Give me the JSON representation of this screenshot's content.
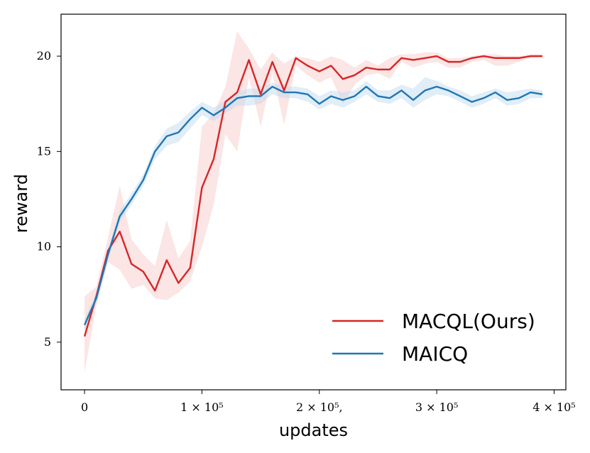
{
  "chart_data": {
    "type": "line",
    "title": "",
    "xlabel": "updates",
    "ylabel": "reward",
    "xlim": [
      -20000,
      410000
    ],
    "ylim": [
      2.5,
      22.2
    ],
    "x_ticks": [
      {
        "value": 0,
        "label": "0"
      },
      {
        "value": 100000,
        "label": "1 × 10⁵"
      },
      {
        "value": 200000,
        "label": "2 × 10⁵,"
      },
      {
        "value": 300000,
        "label": "3 × 10⁵"
      },
      {
        "value": 400000,
        "label": "4 × 10⁵"
      }
    ],
    "y_ticks": [
      {
        "value": 5,
        "label": "5"
      },
      {
        "value": 10,
        "label": "10"
      },
      {
        "value": 15,
        "label": "15"
      },
      {
        "value": 20,
        "label": "20"
      }
    ],
    "grid": false,
    "legend_position": "bottom-right",
    "x": [
      0,
      10000,
      20000,
      30000,
      40000,
      50000,
      60000,
      70000,
      80000,
      90000,
      100000,
      110000,
      120000,
      130000,
      140000,
      150000,
      160000,
      170000,
      180000,
      190000,
      200000,
      210000,
      220000,
      230000,
      240000,
      250000,
      260000,
      270000,
      280000,
      290000,
      300000,
      310000,
      320000,
      330000,
      340000,
      350000,
      360000,
      370000,
      380000,
      390000
    ],
    "series": [
      {
        "name": "MACQL(Ours)",
        "color": "#d62728",
        "band_color": "#f7c6c6",
        "values": [
          5.3,
          7.4,
          9.8,
          10.8,
          9.1,
          8.7,
          7.7,
          9.3,
          8.1,
          8.9,
          13.1,
          14.6,
          17.6,
          18.1,
          19.8,
          18.0,
          19.7,
          18.2,
          19.9,
          19.5,
          19.2,
          19.5,
          18.8,
          19.0,
          19.4,
          19.3,
          19.3,
          19.9,
          19.8,
          19.9,
          20.0,
          19.7,
          19.7,
          19.9,
          20.0,
          19.9,
          19.9,
          19.9,
          20.0,
          20.0
        ],
        "upper": [
          7.4,
          7.9,
          10.5,
          13.2,
          10.4,
          9.6,
          9.0,
          11.4,
          9.4,
          10.3,
          16.3,
          17.0,
          18.4,
          21.3,
          20.4,
          19.3,
          20.2,
          19.6,
          20.0,
          19.9,
          19.7,
          20.0,
          19.8,
          19.4,
          19.8,
          19.5,
          19.9,
          20.1,
          20.1,
          20.2,
          20.2,
          19.9,
          19.9,
          20.0,
          20.1,
          20.1,
          20.0,
          20.0,
          20.1,
          20.1
        ],
        "lower": [
          3.4,
          6.9,
          9.2,
          8.8,
          7.8,
          8.0,
          7.3,
          7.2,
          7.6,
          8.2,
          10.0,
          12.2,
          15.9,
          15.0,
          18.9,
          16.3,
          19.1,
          16.4,
          19.5,
          19.0,
          18.6,
          18.9,
          17.5,
          18.5,
          19.0,
          19.1,
          18.8,
          19.7,
          19.4,
          19.6,
          19.7,
          19.4,
          19.4,
          19.7,
          19.8,
          19.5,
          19.5,
          19.7,
          19.9,
          19.9
        ]
      },
      {
        "name": "MAICQ",
        "color": "#1f77b4",
        "band_color": "#bdd7ee",
        "values": [
          5.9,
          7.3,
          9.6,
          11.6,
          12.5,
          13.5,
          15.0,
          15.8,
          16.0,
          16.7,
          17.3,
          16.9,
          17.3,
          17.8,
          17.9,
          17.9,
          18.4,
          18.1,
          18.1,
          18.0,
          17.5,
          17.9,
          17.7,
          17.9,
          18.4,
          17.9,
          17.8,
          18.2,
          17.7,
          18.2,
          18.4,
          18.2,
          17.9,
          17.6,
          17.8,
          18.1,
          17.7,
          17.8,
          18.1,
          18.0
        ],
        "upper": [
          6.2,
          7.6,
          9.9,
          11.9,
          12.8,
          13.8,
          15.3,
          16.2,
          16.5,
          17.1,
          17.6,
          17.3,
          17.7,
          18.1,
          18.3,
          18.3,
          18.6,
          18.4,
          18.4,
          18.3,
          17.9,
          18.2,
          18.1,
          18.2,
          18.7,
          18.2,
          18.2,
          18.5,
          18.3,
          18.9,
          18.7,
          18.4,
          18.2,
          17.9,
          18.1,
          18.3,
          18.1,
          18.2,
          18.3,
          18.2
        ],
        "lower": [
          5.6,
          7.0,
          9.3,
          11.3,
          12.2,
          13.2,
          14.6,
          15.3,
          15.5,
          16.2,
          16.9,
          16.6,
          17.0,
          17.4,
          17.4,
          17.5,
          18.0,
          17.8,
          17.8,
          17.6,
          17.2,
          17.5,
          17.3,
          17.6,
          18.0,
          17.6,
          17.5,
          17.8,
          17.3,
          17.7,
          18.0,
          17.9,
          17.6,
          17.3,
          17.5,
          17.8,
          17.4,
          17.5,
          17.8,
          17.8
        ]
      }
    ]
  }
}
